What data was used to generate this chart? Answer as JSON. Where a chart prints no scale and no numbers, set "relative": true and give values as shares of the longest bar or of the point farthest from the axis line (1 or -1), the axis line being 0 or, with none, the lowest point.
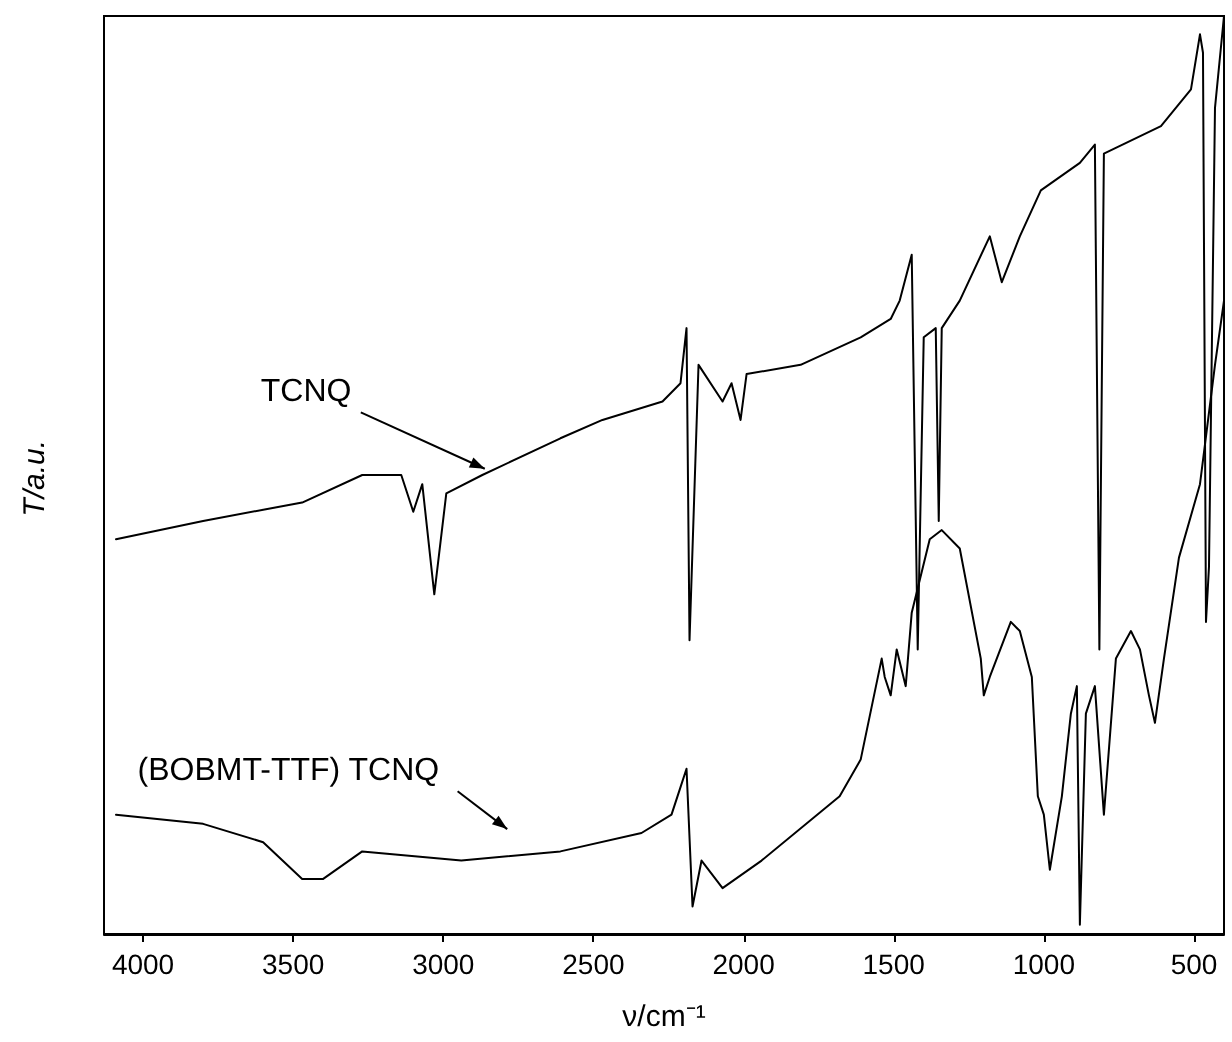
{
  "chart_data": {
    "type": "line",
    "relative": true,
    "xlabel": "ν/cm⁻¹",
    "ylabel": "T/a.u.",
    "xlim": [
      4130,
      400
    ],
    "xticks": [
      4000,
      3500,
      3000,
      2500,
      2000,
      1500,
      1000,
      500
    ],
    "legend": false,
    "grid": false,
    "marker": "none",
    "line_style": "solid",
    "series": [
      {
        "name": "TCNQ",
        "color": "#000000",
        "x": [
          4090,
          3800,
          3470,
          3270,
          3140,
          3100,
          3070,
          3030,
          2990,
          2870,
          2610,
          2470,
          2270,
          2210,
          2190,
          2180,
          2150,
          2070,
          2040,
          2010,
          1990,
          1810,
          1610,
          1510,
          1480,
          1440,
          1420,
          1400,
          1360,
          1350,
          1340,
          1280,
          1180,
          1140,
          1080,
          1010,
          880,
          830,
          815,
          800,
          610,
          510,
          480,
          470,
          460,
          450,
          430,
          400
        ],
        "values": [
          0.43,
          0.45,
          0.47,
          0.5,
          0.5,
          0.46,
          0.49,
          0.37,
          0.48,
          0.5,
          0.54,
          0.56,
          0.58,
          0.6,
          0.66,
          0.32,
          0.62,
          0.58,
          0.6,
          0.56,
          0.61,
          0.62,
          0.65,
          0.67,
          0.69,
          0.74,
          0.31,
          0.65,
          0.66,
          0.45,
          0.66,
          0.69,
          0.76,
          0.71,
          0.76,
          0.81,
          0.84,
          0.86,
          0.31,
          0.85,
          0.88,
          0.92,
          0.98,
          0.96,
          0.34,
          0.4,
          0.9,
          1.0
        ]
      },
      {
        "name": "(BOBMT-TTF) TCNQ",
        "color": "#000000",
        "x": [
          4090,
          3800,
          3600,
          3470,
          3400,
          3270,
          2940,
          2610,
          2340,
          2240,
          2210,
          2190,
          2170,
          2140,
          2070,
          1940,
          1680,
          1610,
          1540,
          1530,
          1510,
          1490,
          1460,
          1440,
          1380,
          1340,
          1280,
          1210,
          1200,
          1180,
          1110,
          1080,
          1040,
          1020,
          1000,
          980,
          940,
          910,
          890,
          880,
          860,
          830,
          800,
          760,
          710,
          680,
          650,
          630,
          600,
          550,
          480,
          430,
          400
        ],
        "values": [
          0.13,
          0.12,
          0.1,
          0.06,
          0.06,
          0.09,
          0.08,
          0.09,
          0.11,
          0.13,
          0.16,
          0.18,
          0.03,
          0.08,
          0.05,
          0.08,
          0.15,
          0.19,
          0.3,
          0.28,
          0.26,
          0.31,
          0.27,
          0.35,
          0.43,
          0.44,
          0.42,
          0.3,
          0.26,
          0.28,
          0.34,
          0.33,
          0.28,
          0.15,
          0.13,
          0.07,
          0.15,
          0.24,
          0.27,
          0.01,
          0.24,
          0.27,
          0.13,
          0.3,
          0.33,
          0.31,
          0.26,
          0.23,
          0.3,
          0.41,
          0.49,
          0.62,
          0.69
        ]
      }
    ]
  }
}
